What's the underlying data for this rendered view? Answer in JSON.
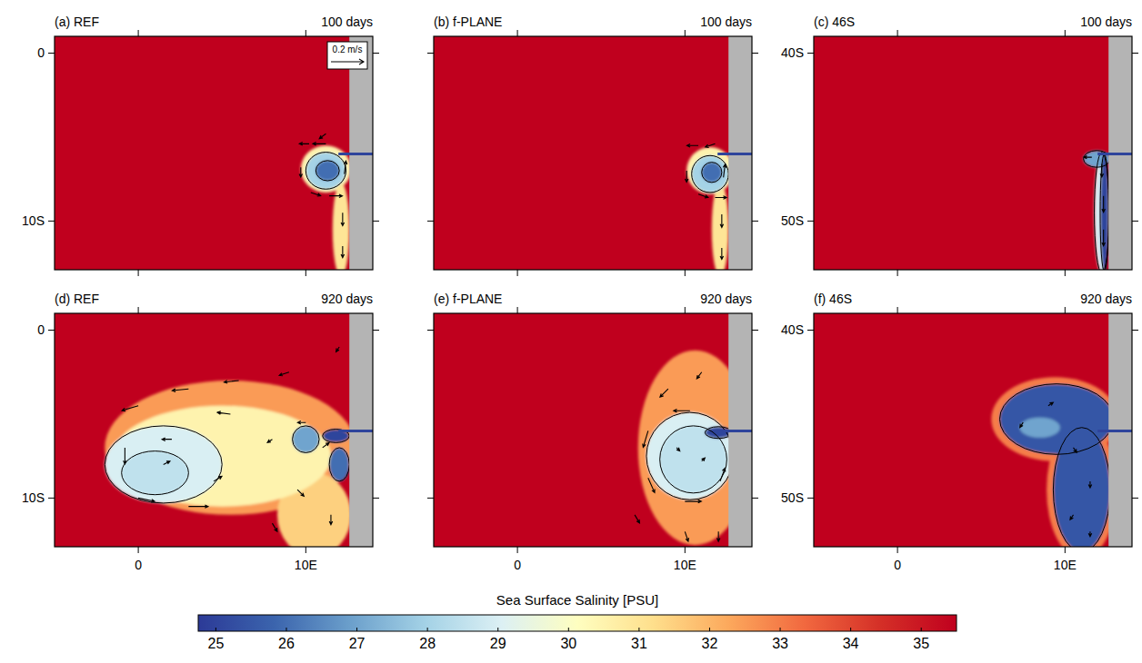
{
  "chart_data": {
    "type": "map",
    "vector_scale": {
      "label": "0.2 m/s",
      "value": 0.2
    },
    "colorbar": {
      "title": "Sea Surface Salinity [PSU]",
      "range": [
        24.75,
        35.5
      ],
      "ticks": [
        25,
        26,
        27,
        28,
        29,
        30,
        31,
        32,
        33,
        34,
        35
      ],
      "colors": [
        "#2c3a97",
        "#3b64ad",
        "#6b9fcb",
        "#a4d2e6",
        "#dcf0f4",
        "#fefec0",
        "#fedf8c",
        "#fca85c",
        "#f1683f",
        "#d42f27",
        "#c0001e"
      ]
    },
    "panels": [
      {
        "title": "(a) REF",
        "time": "100 days",
        "xlim": [
          -5,
          14
        ],
        "ylim": [
          -12.9,
          1
        ],
        "xticks": [
          0,
          {
            "value": 10,
            "label": "10E"
          }
        ],
        "yticks": [
          0,
          {
            "value": -10,
            "label": "10S"
          }
        ],
        "tick_labels": "y",
        "ocean_salinity": 35.5,
        "coast_lon": 12.6,
        "contour_level": 30,
        "river": {
          "lat": -6,
          "salinity": 25
        },
        "blobs": [
          {
            "lon": 11.2,
            "lat": -6.9,
            "rx": 1.5,
            "ry": 1.4,
            "salinity": 30.5
          },
          {
            "lon": 12.1,
            "lat": -10.5,
            "rx": 0.5,
            "ry": 2.8,
            "salinity": 31
          },
          {
            "lon": 11.2,
            "lat": -7,
            "rx": 1.2,
            "ry": 1.1,
            "salinity": 28
          },
          {
            "lon": 11.3,
            "lat": -7,
            "rx": 0.7,
            "ry": 0.6,
            "salinity": 26
          }
        ],
        "vectors": [
          [
            10.2,
            -5.4,
            -0.06,
            0
          ],
          [
            11.2,
            -5.4,
            -0.08,
            0
          ],
          [
            9.7,
            -6.8,
            0,
            -0.06
          ],
          [
            10.3,
            -8.3,
            0.06,
            -0.02
          ],
          [
            11.4,
            -8.5,
            0.08,
            0
          ],
          [
            12.3,
            -7.2,
            0.01,
            0.08
          ],
          [
            12.2,
            -9.5,
            0,
            -0.08
          ],
          [
            12.2,
            -11.5,
            0,
            -0.07
          ],
          [
            11.2,
            -4.8,
            -0.04,
            -0.03
          ]
        ]
      },
      {
        "title": "(b) f-PLANE",
        "time": "100 days",
        "xlim": [
          -5,
          14
        ],
        "ylim": [
          -12.9,
          1
        ],
        "xticks": [
          0,
          {
            "value": 10,
            "label": "10E"
          }
        ],
        "yticks": [
          0,
          {
            "value": -10,
            "label": "10S"
          }
        ],
        "tick_labels": false,
        "ocean_salinity": 35.5,
        "coast_lon": 12.6,
        "contour_level": 30,
        "river": {
          "lat": -6,
          "salinity": 25
        },
        "blobs": [
          {
            "lon": 11.5,
            "lat": -7,
            "rx": 1.4,
            "ry": 1.4,
            "salinity": 30.5
          },
          {
            "lon": 12.1,
            "lat": -10.5,
            "rx": 0.5,
            "ry": 2.8,
            "salinity": 31
          },
          {
            "lon": 11.5,
            "lat": -7.2,
            "rx": 1.1,
            "ry": 1.1,
            "salinity": 28
          },
          {
            "lon": 11.6,
            "lat": -7.1,
            "rx": 0.6,
            "ry": 0.6,
            "salinity": 26
          }
        ],
        "vectors": [
          [
            10.8,
            -5.5,
            -0.07,
            0
          ],
          [
            11.8,
            -5.4,
            -0.06,
            -0.02
          ],
          [
            10.1,
            -7,
            0,
            -0.07
          ],
          [
            10.8,
            -8.4,
            0.06,
            -0.02
          ],
          [
            11.8,
            -8.6,
            0.07,
            0
          ],
          [
            12.3,
            -7.4,
            0.01,
            0.08
          ],
          [
            12.2,
            -9.6,
            0,
            -0.08
          ],
          [
            12.2,
            -11.6,
            0,
            -0.07
          ]
        ]
      },
      {
        "title": "(c) 46S",
        "time": "100 days",
        "xlim": [
          -5,
          14
        ],
        "ylim": [
          -52.9,
          -39
        ],
        "xticks": [
          0,
          {
            "value": 10,
            "label": "10E"
          }
        ],
        "yticks": [
          {
            "value": -40,
            "label": "40S"
          },
          {
            "value": -50,
            "label": "50S"
          }
        ],
        "tick_labels": "y",
        "ocean_salinity": 35.5,
        "coast_lon": 12.6,
        "contour_level": 30,
        "river": {
          "lat": -46,
          "salinity": 25
        },
        "blobs": [
          {
            "lon": 12.2,
            "lat": -49.5,
            "rx": 0.45,
            "ry": 3.6,
            "salinity": 29
          },
          {
            "lon": 11.9,
            "lat": -46.3,
            "rx": 0.8,
            "ry": 0.5,
            "salinity": 27
          },
          {
            "lon": 12.35,
            "lat": -49.5,
            "rx": 0.25,
            "ry": 3.5,
            "salinity": 25
          }
        ],
        "vectors": [
          [
            12.2,
            -46.6,
            0,
            -0.08
          ],
          [
            12.3,
            -48.5,
            0,
            -0.1
          ],
          [
            12.3,
            -50.5,
            0,
            -0.1
          ],
          [
            11.6,
            -46.2,
            -0.05,
            0
          ]
        ]
      },
      {
        "title": "(d) REF",
        "time": "920 days",
        "xlim": [
          -5,
          14
        ],
        "ylim": [
          -12.9,
          1
        ],
        "xticks": [
          0,
          {
            "value": 10,
            "label": "10E"
          }
        ],
        "yticks": [
          0,
          {
            "value": -10,
            "label": "10S"
          }
        ],
        "tick_labels": true,
        "ocean_salinity": 35.5,
        "coast_lon": 12.6,
        "contour_level": 29,
        "river": {
          "lat": -6,
          "salinity": 25
        },
        "blobs": [
          {
            "lon": 5.5,
            "lat": -7,
            "rx": 7.5,
            "ry": 4,
            "salinity": 32.5
          },
          {
            "lon": 10.5,
            "lat": -11,
            "rx": 2.2,
            "ry": 2.5,
            "salinity": 31.5
          },
          {
            "lon": 5,
            "lat": -7.5,
            "rx": 6.5,
            "ry": 3,
            "salinity": 30.5
          },
          {
            "lon": 1.5,
            "lat": -8,
            "rx": 3.5,
            "ry": 2.3,
            "salinity": 29
          },
          {
            "lon": 1,
            "lat": -8.5,
            "rx": 2,
            "ry": 1.3,
            "salinity": 28.5
          },
          {
            "lon": 10,
            "lat": -6.5,
            "rx": 0.8,
            "ry": 0.8,
            "salinity": 27
          },
          {
            "lon": 12,
            "lat": -8,
            "rx": 0.6,
            "ry": 1,
            "salinity": 26
          },
          {
            "lon": 11.8,
            "lat": -6.3,
            "rx": 0.8,
            "ry": 0.4,
            "salinity": 25
          }
        ],
        "vectors": [
          [
            3,
            -3.5,
            -0.1,
            -0.01
          ],
          [
            6,
            -3,
            -0.09,
            -0.01
          ],
          [
            9,
            -2.5,
            -0.06,
            -0.02
          ],
          [
            12,
            -1,
            -0.02,
            -0.03
          ],
          [
            0,
            -4.5,
            -0.1,
            -0.03
          ],
          [
            -0.8,
            -7,
            0,
            -0.1
          ],
          [
            0,
            -10,
            0.1,
            -0.02
          ],
          [
            3,
            -10.5,
            0.12,
            0
          ],
          [
            4.5,
            -9,
            0.05,
            0.03
          ],
          [
            1.5,
            -8,
            0.04,
            0.02
          ],
          [
            2,
            -6.5,
            -0.06,
            0
          ],
          [
            5.5,
            -5,
            -0.08,
            0.01
          ],
          [
            8,
            -6.5,
            -0.03,
            -0.02
          ],
          [
            10,
            -5.5,
            -0.05,
            0
          ],
          [
            11,
            -7,
            0.04,
            0.03
          ],
          [
            9.5,
            -9.5,
            0.04,
            -0.04
          ],
          [
            8,
            -11.5,
            0.03,
            -0.05
          ],
          [
            11.5,
            -11,
            0,
            -0.06
          ]
        ]
      },
      {
        "title": "(e) f-PLANE",
        "time": "920 days",
        "xlim": [
          -5,
          14
        ],
        "ylim": [
          -12.9,
          1
        ],
        "xticks": [
          0,
          {
            "value": 10,
            "label": "10E"
          }
        ],
        "yticks": [
          0,
          {
            "value": -10,
            "label": "10S"
          }
        ],
        "tick_labels": "x",
        "ocean_salinity": 35.5,
        "coast_lon": 12.6,
        "contour_level": 29,
        "river": {
          "lat": -6,
          "salinity": 25
        },
        "blobs": [
          {
            "lon": 10.6,
            "lat": -7,
            "rx": 3.4,
            "ry": 5.8,
            "salinity": 32.5
          },
          {
            "lon": 10.3,
            "lat": -7.5,
            "rx": 2.6,
            "ry": 2.6,
            "salinity": 29
          },
          {
            "lon": 10.5,
            "lat": -7.7,
            "rx": 2,
            "ry": 2,
            "salinity": 28.5
          },
          {
            "lon": 12,
            "lat": -6.1,
            "rx": 0.8,
            "ry": 0.35,
            "salinity": 25
          }
        ],
        "vectors": [
          [
            10.3,
            -4.8,
            -0.1,
            0
          ],
          [
            7.8,
            -6,
            -0.03,
            -0.1
          ],
          [
            7.8,
            -8.8,
            0.04,
            -0.09
          ],
          [
            10,
            -10.2,
            0.1,
            0
          ],
          [
            12.1,
            -9,
            0.03,
            0.08
          ],
          [
            9.5,
            -7,
            0.02,
            -0.02
          ],
          [
            11,
            -7.8,
            0.02,
            0.02
          ],
          [
            11,
            -2.5,
            -0.03,
            -0.04
          ],
          [
            9,
            -3.5,
            -0.05,
            -0.05
          ],
          [
            7,
            -11,
            0.03,
            -0.05
          ],
          [
            10,
            -12,
            0.02,
            -0.06
          ],
          [
            12,
            -12,
            0,
            -0.06
          ]
        ]
      },
      {
        "title": "(f) 46S",
        "time": "920 days",
        "xlim": [
          -5,
          14
        ],
        "ylim": [
          -52.9,
          -39
        ],
        "xticks": [
          0,
          {
            "value": 10,
            "label": "10E"
          }
        ],
        "yticks": [
          {
            "value": -40,
            "label": "40S"
          },
          {
            "value": -50,
            "label": "50S"
          }
        ],
        "tick_labels": true,
        "ocean_salinity": 35.5,
        "coast_lon": 12.6,
        "contour_level": 26,
        "river": {
          "lat": -46,
          "salinity": 25
        },
        "blobs": [
          {
            "lon": 9.4,
            "lat": -45.3,
            "rx": 3.8,
            "ry": 2.5,
            "salinity": 33
          },
          {
            "lon": 11,
            "lat": -49.5,
            "rx": 2.1,
            "ry": 4.1,
            "salinity": 33
          },
          {
            "lon": 9.5,
            "lat": -45.3,
            "rx": 3.4,
            "ry": 2.1,
            "salinity": 25.5
          },
          {
            "lon": 11,
            "lat": -49.5,
            "rx": 1.7,
            "ry": 3.7,
            "salinity": 25.5
          },
          {
            "lon": 8.5,
            "lat": -45.8,
            "rx": 1.2,
            "ry": 0.6,
            "salinity": 27
          }
        ],
        "vectors": [
          [
            9,
            -44.5,
            0.03,
            0.02
          ],
          [
            7.5,
            -45.5,
            -0.02,
            -0.03
          ],
          [
            10.5,
            -47,
            0.02,
            -0.03
          ],
          [
            11.5,
            -49,
            0,
            -0.04
          ],
          [
            10.5,
            -51,
            -0.02,
            -0.03
          ],
          [
            11.5,
            -52,
            0,
            -0.03
          ]
        ]
      }
    ]
  }
}
